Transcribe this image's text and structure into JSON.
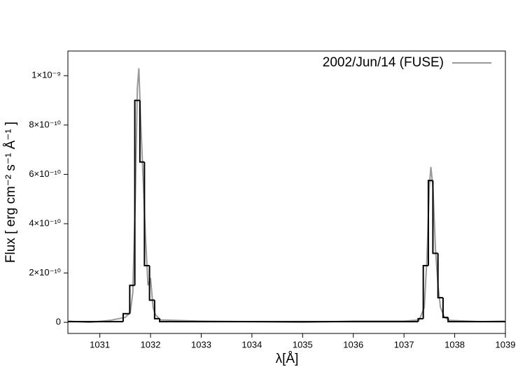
{
  "chart_data": {
    "type": "line",
    "xlabel": "λ[Å]",
    "ylabel": "Flux [ erg cm⁻² s⁻¹ Å⁻¹ ]",
    "xlim": [
      1030.37,
      1039
    ],
    "ylim": [
      -4.5e-11,
      1.1e-09
    ],
    "xticks": [
      1031,
      1032,
      1033,
      1034,
      1035,
      1036,
      1037,
      1038,
      1039
    ],
    "yticks": [
      0,
      {
        "value": 2e-10,
        "label": "2×10⁻¹⁰"
      },
      {
        "value": 4e-10,
        "label": "4×10⁻¹⁰"
      },
      {
        "value": 6e-10,
        "label": "6×10⁻¹⁰"
      },
      {
        "value": 8e-10,
        "label": "8×10⁻¹⁰"
      },
      {
        "value": 1e-09,
        "label": "1×10⁻⁹"
      }
    ],
    "legend": "upper right",
    "series": [
      {
        "name": "2002/Jun/14 (FUSE)",
        "color": "#999999",
        "x": [
          1030.37,
          1030.8,
          1031.2,
          1031.5,
          1031.6,
          1031.65,
          1031.7,
          1031.74,
          1031.77,
          1031.8,
          1031.85,
          1031.9,
          1031.95,
          1032.0,
          1032.05,
          1032.1,
          1032.2,
          1033,
          1034,
          1035,
          1036,
          1037,
          1037.3,
          1037.4,
          1037.45,
          1037.5,
          1037.53,
          1037.57,
          1037.62,
          1037.67,
          1037.72,
          1037.8,
          1037.9,
          1038.5,
          1039
        ],
        "values": [
          5e-12,
          0,
          8e-12,
          2e-11,
          4e-11,
          1.2e-10,
          5e-10,
          9.5e-10,
          1.03e-09,
          8.5e-10,
          6e-10,
          3.5e-10,
          1.5e-10,
          1.8e-10,
          6e-11,
          3e-11,
          1e-11,
          5e-12,
          3e-12,
          0,
          5e-12,
          5e-12,
          1e-11,
          6e-11,
          2.5e-10,
          5.5e-10,
          6.3e-10,
          5.5e-10,
          3e-10,
          1.5e-10,
          6e-11,
          2e-11,
          8e-12,
          3e-12,
          5e-12
        ]
      },
      {
        "color": "#000000",
        "bins": [
          1030.37,
          1031.46,
          1031.59,
          1031.69,
          1031.79,
          1031.88,
          1031.98,
          1032.08,
          1032.18,
          1037.28,
          1037.38,
          1037.48,
          1037.57,
          1037.67,
          1037.77,
          1037.87,
          1039
        ],
        "values": [
          3e-12,
          3.5e-11,
          1.5e-10,
          9e-10,
          6.5e-10,
          2.3e-10,
          9e-11,
          1.5e-11,
          3e-12,
          1.5e-11,
          2.3e-10,
          5.75e-10,
          2.8e-10,
          1e-10,
          2e-11,
          3e-12
        ]
      }
    ]
  }
}
